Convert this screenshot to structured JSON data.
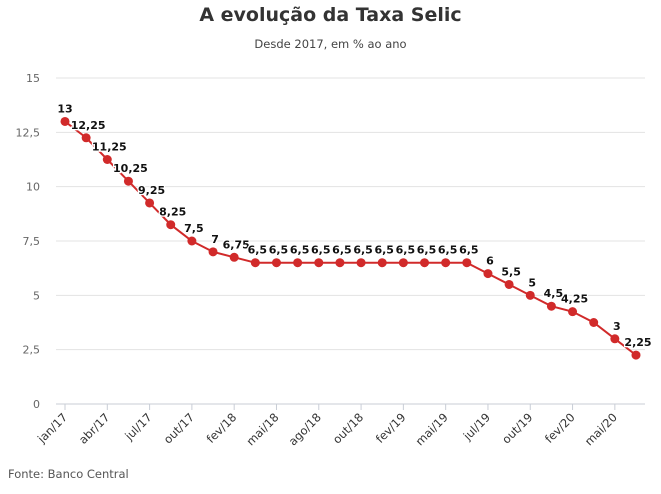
{
  "chart_data": {
    "type": "line",
    "title": "A evolução da Taxa Selic",
    "subtitle": "Desde 2017, em % ao ano",
    "source": "Fonte: Banco Central",
    "xlabel": "",
    "ylabel": "",
    "ylim": [
      0,
      15
    ],
    "yticks": [
      0,
      2.5,
      5,
      7.5,
      10,
      12.5,
      15
    ],
    "ytick_labels": [
      "0",
      "2,5",
      "5",
      "7,5",
      "10",
      "12,5",
      "15"
    ],
    "xtick_labels": [
      "jan/17",
      "abr/17",
      "jul/17",
      "out/17",
      "fev/18",
      "mai/18",
      "ago/18",
      "out/18",
      "fev/19",
      "mai/19",
      "jul/19",
      "out/19",
      "fev/20",
      "mai/20"
    ],
    "xtick_every": 2,
    "grid": true,
    "line_color": "#d12a2a",
    "series": [
      {
        "name": "Selic",
        "values": [
          13,
          12.25,
          11.25,
          10.25,
          9.25,
          8.25,
          7.5,
          7,
          6.75,
          6.5,
          6.5,
          6.5,
          6.5,
          6.5,
          6.5,
          6.5,
          6.5,
          6.5,
          6.5,
          6.5,
          6,
          5.5,
          5,
          4.5,
          4.25,
          3.75,
          3,
          2.25
        ],
        "labels": [
          "13",
          "12,25",
          "11,25",
          "10,25",
          "9,25",
          "8,25",
          "7,5",
          "7",
          "6,75",
          "6,5",
          "6,5",
          "6,5",
          "6,5",
          "6,5",
          "6,5",
          "6,5",
          "6,5",
          "6,5",
          "6,5",
          "6,5",
          "6",
          "5,5",
          "5",
          "4,5",
          "4,25",
          null,
          "3",
          "2,25"
        ]
      }
    ]
  }
}
